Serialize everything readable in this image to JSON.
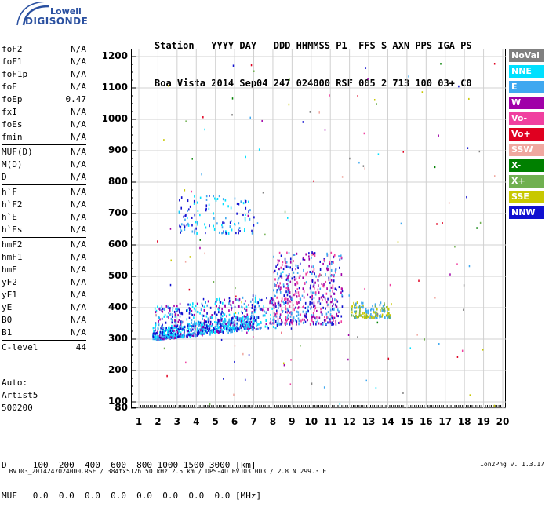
{
  "logo": {
    "line1": "Lowell",
    "line2": "DIGISONDE"
  },
  "header": {
    "line1": "Station   YYYY DAY   DDD HHMMSS P1  FFS S AXN PPS IGA PS",
    "line2": "Boa Vista 2014 Sep04 247 024000 RSF 005 2 713 100 03+ C0"
  },
  "params": [
    {
      "label": "foF2",
      "value": "N/A"
    },
    {
      "label": "foF1",
      "value": "N/A"
    },
    {
      "label": "foF1p",
      "value": "N/A"
    },
    {
      "label": "foE",
      "value": "N/A"
    },
    {
      "label": "foEp",
      "value": "0.47"
    },
    {
      "label": "fxI",
      "value": "N/A"
    },
    {
      "label": "foEs",
      "value": "N/A"
    },
    {
      "label": "fmin",
      "value": "N/A"
    },
    {
      "label": "MUF(D)",
      "value": "N/A",
      "sep": true
    },
    {
      "label": "M(D)",
      "value": "N/A"
    },
    {
      "label": "D",
      "value": "N/A"
    },
    {
      "label": "h`F",
      "value": "N/A",
      "sep": true
    },
    {
      "label": "h`F2",
      "value": "N/A"
    },
    {
      "label": "h`E",
      "value": "N/A"
    },
    {
      "label": "h`Es",
      "value": "N/A"
    },
    {
      "label": "hmF2",
      "value": "N/A",
      "sep": true
    },
    {
      "label": "hmF1",
      "value": "N/A"
    },
    {
      "label": "hmE",
      "value": "N/A"
    },
    {
      "label": "yF2",
      "value": "N/A"
    },
    {
      "label": "yF1",
      "value": "N/A"
    },
    {
      "label": "yE",
      "value": "N/A"
    },
    {
      "label": "B0",
      "value": "N/A"
    },
    {
      "label": "B1",
      "value": "N/A"
    },
    {
      "label": "C-level",
      "value": "44",
      "sep": true
    }
  ],
  "auto": {
    "line1": "Auto:",
    "line2": "Artist5",
    "line3": "500200"
  },
  "legend": [
    {
      "label": "NoVal",
      "color": "#808080"
    },
    {
      "label": "NNE",
      "color": "#00e0ff"
    },
    {
      "label": "E",
      "color": "#3fa8f0"
    },
    {
      "label": "W",
      "color": "#a000a8"
    },
    {
      "label": "Vo-",
      "color": "#f040a0"
    },
    {
      "label": "Vo+",
      "color": "#e00020"
    },
    {
      "label": "SSW",
      "color": "#f0a8a0"
    },
    {
      "label": "X-",
      "color": "#008000"
    },
    {
      "label": "X+",
      "color": "#70b050"
    },
    {
      "label": "SSE",
      "color": "#c8c800"
    },
    {
      "label": "NNW",
      "color": "#1010d0"
    }
  ],
  "dtable": {
    "line1": "D     100  200  400  600  800 1000 1500 3000 [km]",
    "line2": "MUF   0.0  0.0  0.0  0.0  0.0  0.0  0.0  0.0 [MHz]"
  },
  "footer": {
    "left": "BVJ03_2014247024000.RSF / 384fx512h 50 kHz 2.5 km / DPS-4D BVJ03 003 / 2.8 N 299.3 E",
    "right": "Ion2Png v. 1.3.17"
  },
  "chart_data": {
    "type": "scatter",
    "title": "",
    "xlabel": "",
    "ylabel": "",
    "xlim": [
      1,
      20
    ],
    "ylim": [
      80,
      1200
    ],
    "x_ticks": [
      1,
      2,
      3,
      4,
      5,
      6,
      7,
      8,
      9,
      10,
      11,
      12,
      13,
      14,
      15,
      16,
      17,
      18,
      19,
      20
    ],
    "y_ticks": [
      80,
      100,
      200,
      300,
      400,
      500,
      600,
      700,
      800,
      900,
      1000,
      1100,
      1200
    ],
    "grid": true,
    "legend_position": "right",
    "clusters": [
      {
        "name": "lower-band",
        "freq": [
          1.7,
          7.0
        ],
        "height": [
          300,
          340
        ],
        "colors": [
          "#1010d0",
          "#00e0ff",
          "#3fa8f0"
        ]
      },
      {
        "name": "mid-band",
        "freq": [
          1.8,
          8.2
        ],
        "height": [
          300,
          410
        ],
        "colors": [
          "#3fa8f0",
          "#00e0ff",
          "#1010d0",
          "#a000a8"
        ]
      },
      {
        "name": "upper-band",
        "freq": [
          8.0,
          11.6
        ],
        "height": [
          350,
          580
        ],
        "colors": [
          "#a000a8",
          "#3fa8f0",
          "#f040a0",
          "#1010d0"
        ]
      },
      {
        "name": "high-echo",
        "freq": [
          3.0,
          7.0
        ],
        "height": [
          640,
          760
        ],
        "colors": [
          "#1010d0",
          "#00e0ff",
          "#3fa8f0"
        ]
      },
      {
        "name": "end-band",
        "freq": [
          12.0,
          14.2
        ],
        "height": [
          370,
          420
        ],
        "colors": [
          "#c8c800",
          "#3fa8f0",
          "#70b050"
        ]
      }
    ]
  }
}
